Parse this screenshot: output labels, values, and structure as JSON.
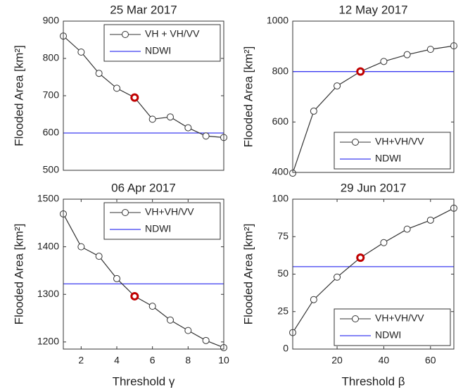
{
  "chart_data": [
    {
      "type": "line",
      "title": "25 Mar 2017",
      "ylabel": "Flooded Area [km²]",
      "x": [
        1,
        2,
        3,
        4,
        5,
        6,
        7,
        8,
        9,
        10
      ],
      "xlim": [
        1,
        10
      ],
      "ylim": [
        500,
        900
      ],
      "yticks": [
        500,
        600,
        700,
        800,
        900
      ],
      "series": [
        {
          "name": "VH + VH/VV",
          "color": "#333333",
          "values": [
            860,
            817,
            760,
            720,
            695,
            637,
            643,
            614,
            592,
            588
          ],
          "highlight": 4,
          "highlight_color": "#c00000"
        }
      ],
      "hline": {
        "name": "NDWI",
        "value": 600,
        "color": "#3c3cf0"
      },
      "legend": "upper right"
    },
    {
      "type": "line",
      "title": "12 May 2017",
      "ylabel": "Flooded Area [km²]",
      "x": [
        1,
        10,
        20,
        30,
        40,
        50,
        60,
        70
      ],
      "xlim": [
        1,
        70
      ],
      "ylim": [
        400,
        1000
      ],
      "yticks": [
        400,
        600,
        800,
        1000
      ],
      "series": [
        {
          "name": "VH+VH/VV",
          "color": "#333333",
          "values": [
            397,
            643,
            743,
            800,
            840,
            867,
            888,
            902
          ],
          "highlight": 3,
          "highlight_color": "#c00000"
        }
      ],
      "hline": {
        "name": "NDWI",
        "value": 800,
        "color": "#3c3cf0"
      },
      "legend": "lower right"
    },
    {
      "type": "line",
      "title": "06 Apr 2017",
      "ylabel": "Flooded Area [km²]",
      "xlabel": "Threshold γ",
      "x": [
        1,
        2,
        3,
        4,
        5,
        6,
        7,
        8,
        9,
        10
      ],
      "xlim": [
        1,
        10
      ],
      "xticks": [
        2,
        4,
        6,
        8,
        10
      ],
      "ylim": [
        1185,
        1500
      ],
      "yticks": [
        1200,
        1300,
        1400,
        1500
      ],
      "series": [
        {
          "name": "VH+VH/VV",
          "color": "#333333",
          "values": [
            1469,
            1400,
            1380,
            1333,
            1296,
            1275,
            1246,
            1224,
            1203,
            1188
          ],
          "highlight": 4,
          "highlight_color": "#c00000"
        }
      ],
      "hline": {
        "name": "NDWI",
        "value": 1322,
        "color": "#3c3cf0"
      },
      "legend": "upper right"
    },
    {
      "type": "line",
      "title": "29 Jun 2017",
      "ylabel": "Flooded Area [km²]",
      "xlabel": "Threshold β",
      "x": [
        1,
        10,
        20,
        30,
        40,
        50,
        60,
        70
      ],
      "xlim": [
        1,
        70
      ],
      "xticks": [
        20,
        40,
        60
      ],
      "ylim": [
        0,
        100
      ],
      "yticks": [
        0,
        25,
        50,
        75,
        100
      ],
      "series": [
        {
          "name": "VH+VH/VV",
          "color": "#333333",
          "values": [
            11,
            33,
            48,
            61,
            71,
            80,
            86,
            94
          ],
          "highlight": 3,
          "highlight_color": "#c00000"
        }
      ],
      "hline": {
        "name": "NDWI",
        "value": 55,
        "color": "#3c3cf0"
      },
      "legend": "lower right"
    }
  ]
}
